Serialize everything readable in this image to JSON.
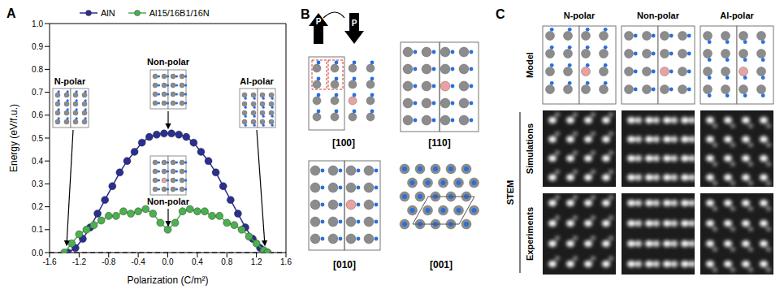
{
  "panel_labels": [
    "A",
    "B",
    "C"
  ],
  "chart_data": {
    "type": "line",
    "x_label": "Polarization (C/m²)",
    "y_label": "Energy (eV/f.u.)",
    "xlim": [
      -1.6,
      1.6
    ],
    "xticks": [
      -1.6,
      -1.2,
      -0.8,
      -0.4,
      {
        "value": 0,
        "label": "0.0"
      },
      0.4,
      0.8,
      1.2,
      1.6
    ],
    "ylim": [
      0,
      1.0
    ],
    "yticks": [
      {
        "value": 0,
        "label": "0.0"
      },
      0.1,
      0.2,
      0.3,
      0.4,
      0.5,
      0.6,
      0.7,
      0.8,
      0.9,
      {
        "value": 1.0,
        "label": "1.0"
      }
    ],
    "legend": "top",
    "annotations": [
      "N-polar",
      "Non-polar",
      "Al-polar",
      "Non-polar"
    ],
    "series": [
      {
        "name": "AlN",
        "color": "#2b2f8f",
        "marker": "circle",
        "x": [
          -1.35,
          -1.25,
          -1.15,
          -1.05,
          -0.95,
          -0.85,
          -0.75,
          -0.65,
          -0.55,
          -0.45,
          -0.35,
          -0.25,
          -0.15,
          -0.05,
          0.05,
          0.15,
          0.25,
          0.35,
          0.45,
          0.55,
          0.65,
          0.75,
          0.85,
          0.95,
          1.05,
          1.15,
          1.25,
          1.35
        ],
        "values": [
          0.0,
          0.02,
          0.06,
          0.11,
          0.17,
          0.23,
          0.29,
          0.35,
          0.4,
          0.44,
          0.48,
          0.505,
          0.515,
          0.52,
          0.52,
          0.515,
          0.505,
          0.48,
          0.44,
          0.4,
          0.35,
          0.29,
          0.23,
          0.17,
          0.11,
          0.06,
          0.02,
          0.0
        ]
      },
      {
        "name": "Al15/16B1/16N",
        "color": "#4caf50",
        "marker": "circle",
        "x": [
          -1.4,
          -1.3,
          -1.2,
          -1.1,
          -1.0,
          -0.9,
          -0.8,
          -0.7,
          -0.6,
          -0.5,
          -0.4,
          -0.3,
          -0.2,
          -0.1,
          0.0,
          0.1,
          0.2,
          0.3,
          0.4,
          0.5,
          0.6,
          0.7,
          0.8,
          0.9,
          1.0,
          1.1,
          1.2,
          1.3,
          1.35
        ],
        "values": [
          0.0,
          0.04,
          0.08,
          0.1,
          0.12,
          0.14,
          0.16,
          0.16,
          0.18,
          0.17,
          0.18,
          0.19,
          0.17,
          0.13,
          0.1,
          0.13,
          0.18,
          0.19,
          0.18,
          0.18,
          0.16,
          0.16,
          0.13,
          0.12,
          0.1,
          0.07,
          0.04,
          0.01,
          0.0
        ]
      }
    ]
  },
  "panel_b": {
    "polarization_label": "P",
    "views": [
      "[100]",
      "[110]",
      "[010]",
      "[001]"
    ]
  },
  "panel_c": {
    "columns": [
      "N-polar",
      "Non-polar",
      "Al-polar"
    ],
    "rows": [
      "Model",
      "Simulations",
      "Experiments"
    ],
    "group_label": "STEM"
  }
}
